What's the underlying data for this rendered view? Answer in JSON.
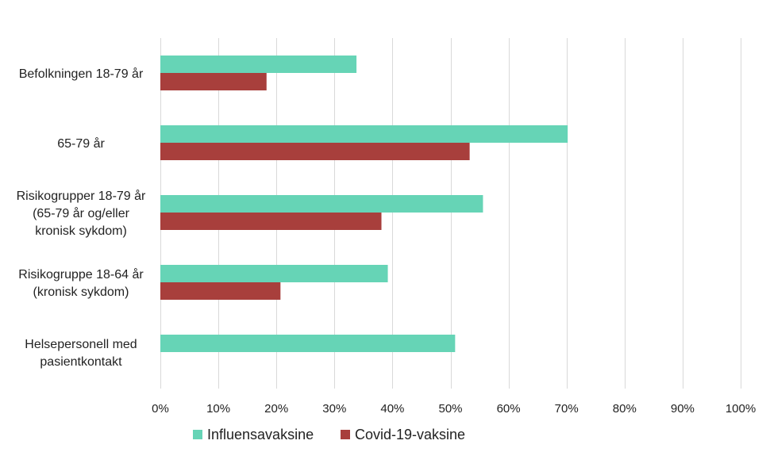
{
  "chart_data": {
    "type": "bar",
    "orientation": "horizontal",
    "title": "",
    "xlabel": "",
    "ylabel": "",
    "xlim": [
      0,
      100
    ],
    "x_tick_step": 10,
    "x_tick_labels": [
      "0%",
      "10%",
      "20%",
      "30%",
      "40%",
      "50%",
      "60%",
      "70%",
      "80%",
      "90%",
      "100%"
    ],
    "grid": "vertical",
    "legend_position": "bottom-center",
    "categories": [
      [
        "Befolkningen 18-79 år"
      ],
      [
        "65-79 år"
      ],
      [
        "Risikogrupper 18-79 år",
        "(65-79 år og/eller",
        "kronisk sykdom)"
      ],
      [
        "Risikogruppe 18-64 år",
        "(kronisk sykdom)"
      ],
      [
        "Helsepersonell med",
        "pasientkontakt"
      ]
    ],
    "series": [
      {
        "name": "Influensavaksine",
        "color": "#66d4b6",
        "values": [
          33.8,
          70.2,
          55.6,
          39.2,
          50.8
        ]
      },
      {
        "name": "Covid-19-vaksine",
        "color": "#a83f3c",
        "values": [
          18.3,
          53.3,
          38.1,
          20.7,
          null
        ]
      }
    ]
  }
}
